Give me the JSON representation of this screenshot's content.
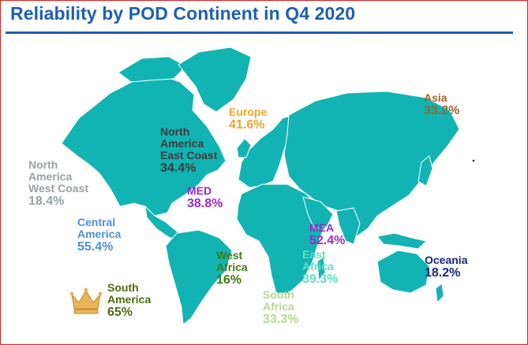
{
  "title": "Reliability by POD Continent in Q4 2020",
  "colors": {
    "title": "#1c5fb4",
    "land": "#12b3b3",
    "border": "#d81e1e"
  },
  "regions": [
    {
      "name": "North America West Coast",
      "lines": [
        "North",
        "America",
        "West Coast"
      ],
      "value": "18.4%",
      "color": "#9aa0a6"
    },
    {
      "name": "North America East Coast",
      "lines": [
        "North",
        "America",
        "East Coast"
      ],
      "value": "34.4%",
      "color": "#3c3c3c"
    },
    {
      "name": "Central America",
      "lines": [
        "Central",
        "America"
      ],
      "value": "55.4%",
      "color": "#4a90d9"
    },
    {
      "name": "South America",
      "lines": [
        "South",
        "America"
      ],
      "value": "65%",
      "color": "#4e6b12"
    },
    {
      "name": "Europe",
      "lines": [
        "Europe"
      ],
      "value": "41.6%",
      "color": "#f2a524"
    },
    {
      "name": "MED",
      "lines": [
        "MED"
      ],
      "value": "38.8%",
      "color": "#9b27c9"
    },
    {
      "name": "West Africa",
      "lines": [
        "West",
        "Africa"
      ],
      "value": "16%",
      "color": "#3d7a12"
    },
    {
      "name": "South Africa",
      "lines": [
        "South",
        "Africa"
      ],
      "value": "33.3%",
      "color": "#b6d98e"
    },
    {
      "name": "MEA",
      "lines": [
        "MEA"
      ],
      "value": "52.4%",
      "color": "#9b27c9"
    },
    {
      "name": "East Africa",
      "lines": [
        "East",
        "Africa"
      ],
      "value": "39.3%",
      "color": "#5ee0c0"
    },
    {
      "name": "Asia",
      "lines": [
        "Asia"
      ],
      "value": "33.2%",
      "color": "#a0622a"
    },
    {
      "name": "Oceania",
      "lines": [
        "Oceania"
      ],
      "value": "18.2%",
      "color": "#1a237e"
    }
  ],
  "badge_icon": "crown-icon"
}
